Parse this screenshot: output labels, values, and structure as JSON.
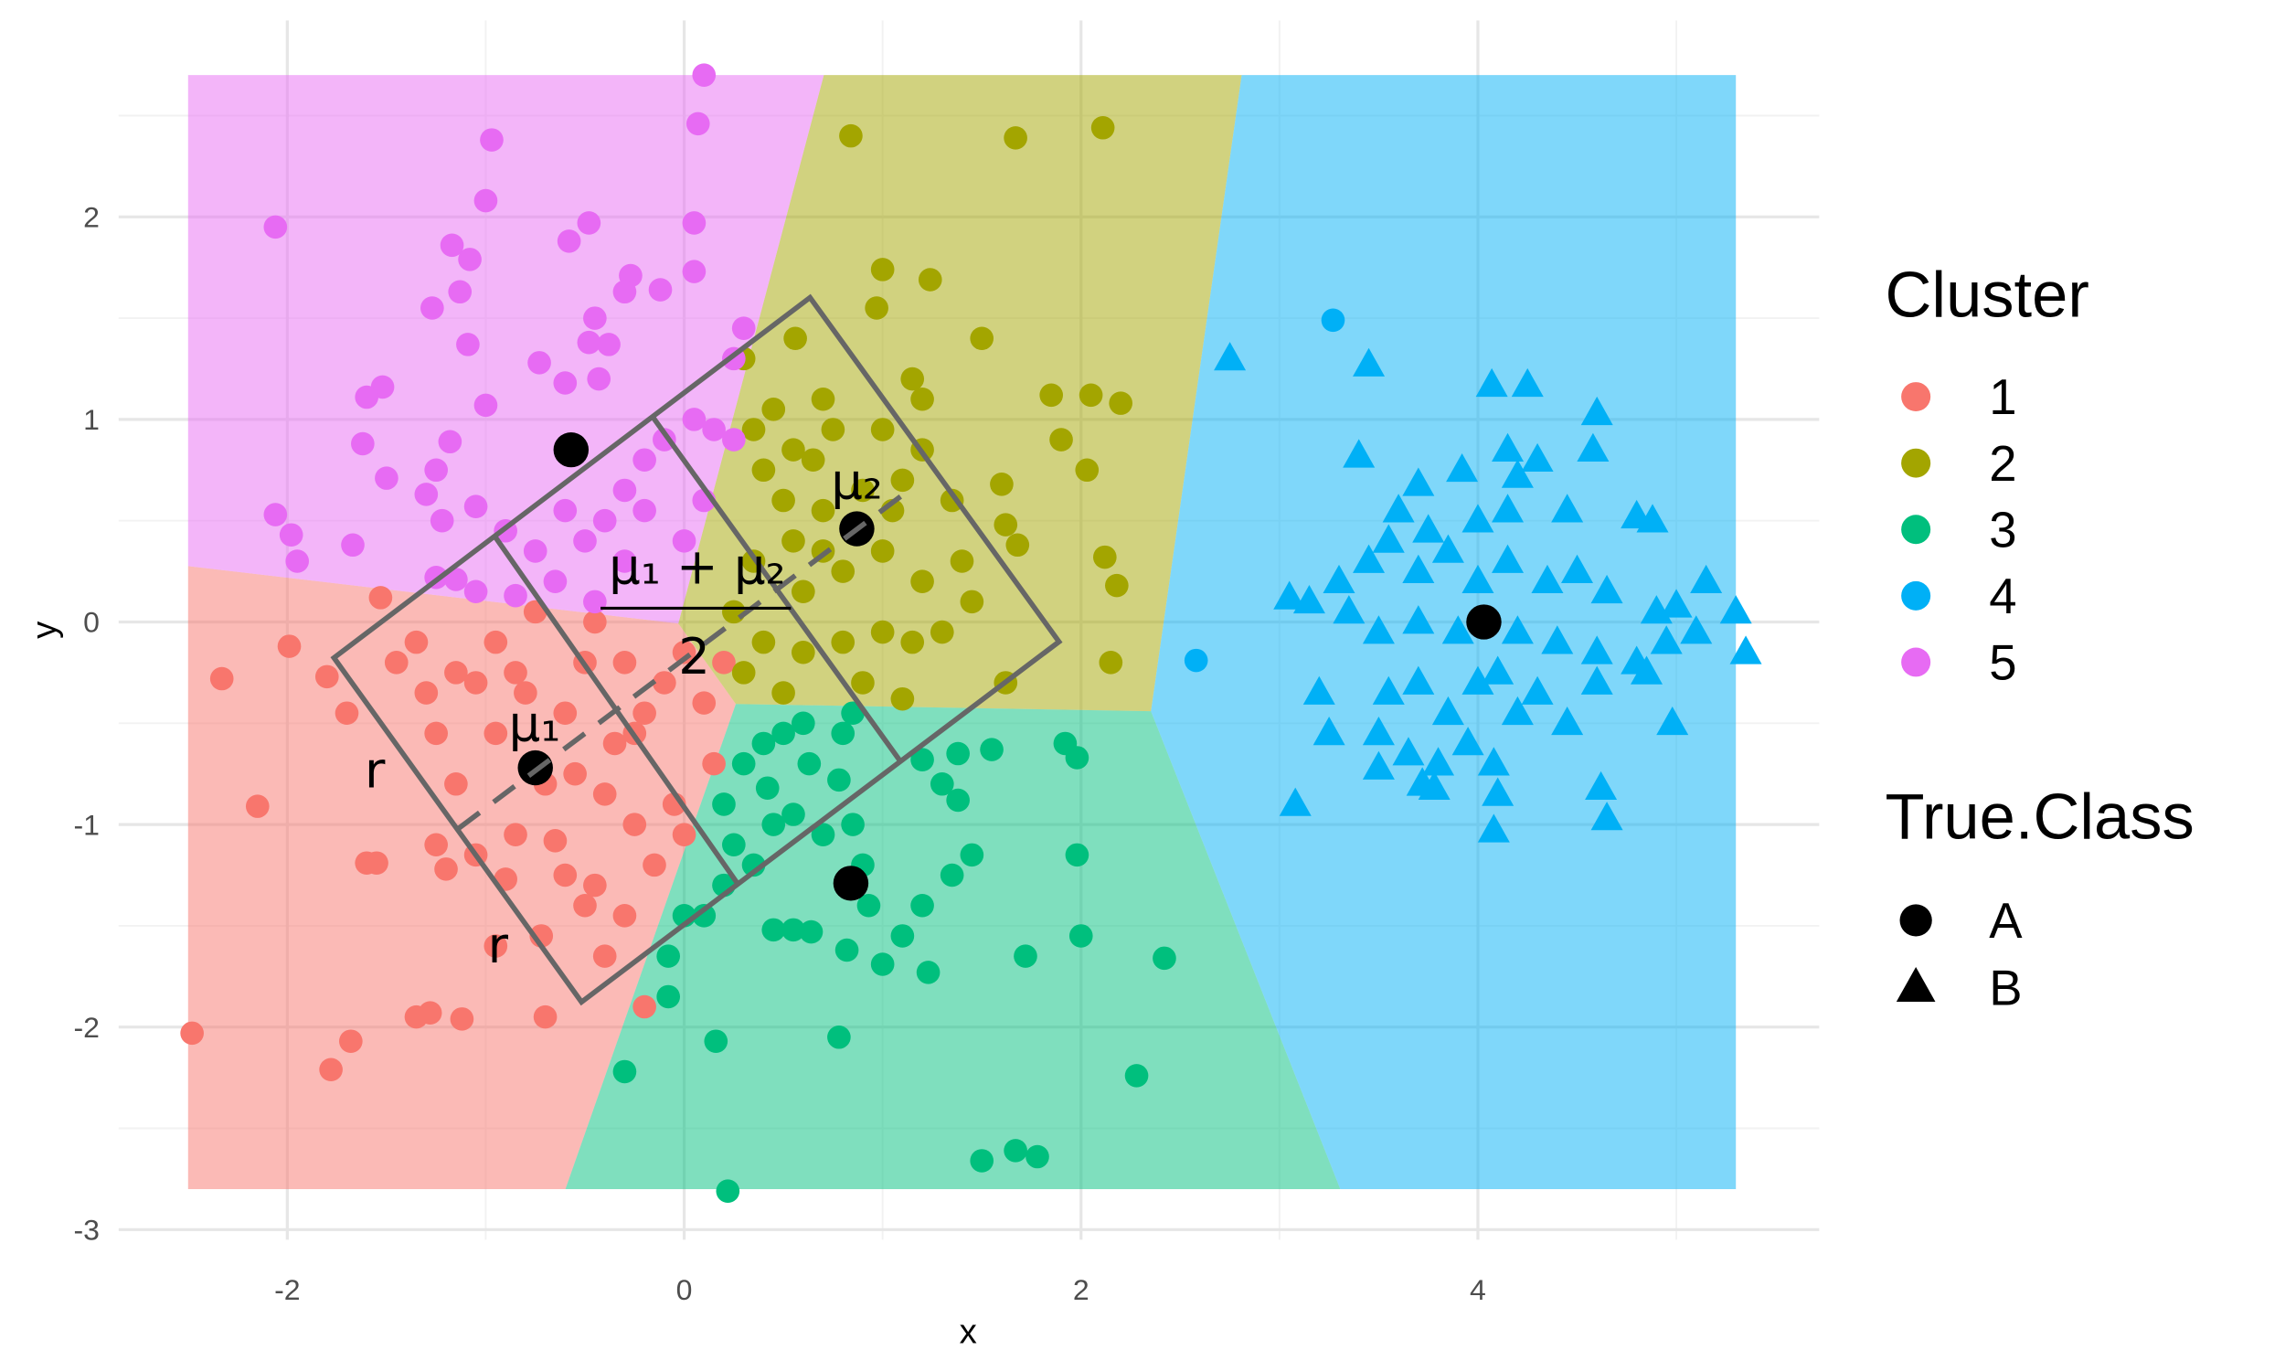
{
  "chart_data": {
    "type": "scatter",
    "x_label": "x",
    "y_label": "y",
    "xlim": [
      -2.85,
      5.72
    ],
    "ylim": [
      -3.05,
      2.97
    ],
    "xticks": [
      -2,
      0,
      2,
      4
    ],
    "yticks": [
      -3,
      -2,
      -1,
      0,
      1,
      2
    ],
    "x_minor_ticks": [
      -1,
      1,
      3,
      5
    ],
    "y_minor_ticks": [
      -2.5,
      -1.5,
      -0.5,
      0.5,
      1.5,
      2.5
    ],
    "grid": true,
    "region_xlim": [
      -2.5,
      5.3
    ],
    "region_ylim": [
      -2.8,
      2.7
    ],
    "cluster_legend_title": "Cluster",
    "clusters": [
      {
        "name": "1",
        "color": "#F8766D"
      },
      {
        "name": "2",
        "color": "#A3A500"
      },
      {
        "name": "3",
        "color": "#00BF7D"
      },
      {
        "name": "4",
        "color": "#00B0F6"
      },
      {
        "name": "5",
        "color": "#E76BF3"
      }
    ],
    "class_legend_title": "True.Class",
    "classes": [
      {
        "name": "A",
        "shape": "circle"
      },
      {
        "name": "B",
        "shape": "triangle"
      }
    ],
    "centers": {
      "x": [
        -0.75,
        0.87,
        0.84,
        4.03,
        -0.57
      ],
      "y": [
        -0.72,
        0.46,
        -1.29,
        0.0,
        0.85
      ]
    },
    "annotations": [
      "μ₁",
      "μ₂",
      "μ₁ + μ₂",
      "2",
      "r",
      "r"
    ],
    "series": [
      {
        "cluster": 0,
        "true_class": 0,
        "x": [
          -2.48,
          -2.33,
          -2.15,
          -1.99,
          -1.78,
          -1.68,
          -1.8,
          -1.7,
          -1.53,
          -1.45,
          -1.35,
          -1.3,
          -1.25,
          -1.15,
          -1.05,
          -0.95,
          -0.85,
          -0.95,
          -1.15,
          -1.25,
          -1.2,
          -1.05,
          -1.35,
          -1.28,
          -1.12,
          -0.95,
          -0.72,
          -0.7,
          -0.85,
          -0.65,
          -0.6,
          -0.5,
          -0.45,
          -0.3,
          -0.25,
          -0.2,
          -0.4,
          -0.35,
          -0.2,
          -0.1,
          0.0,
          0.1,
          0.2,
          0.15,
          -0.05,
          0.0,
          -0.5,
          -0.45,
          -0.6,
          -0.7,
          -0.8,
          -0.55,
          -0.3,
          -1.55,
          -1.6,
          -0.9,
          -0.25,
          -0.4,
          -0.15,
          -0.75
        ],
        "y": [
          -2.03,
          -0.28,
          -0.91,
          -0.12,
          -2.21,
          -2.07,
          -0.27,
          -0.45,
          0.12,
          -0.2,
          -0.1,
          -0.35,
          -0.55,
          -0.25,
          -0.3,
          -0.1,
          -0.25,
          -0.55,
          -0.8,
          -1.1,
          -1.22,
          -1.15,
          -1.95,
          -1.93,
          -1.96,
          -1.6,
          -1.55,
          -1.95,
          -1.05,
          -1.08,
          -1.25,
          -1.4,
          -1.3,
          -1.45,
          -1.0,
          -1.9,
          -0.85,
          -0.6,
          -0.45,
          -0.3,
          -0.15,
          -0.4,
          -0.2,
          -0.7,
          -0.9,
          -1.05,
          -0.2,
          0.0,
          -0.45,
          -0.8,
          -0.35,
          -0.75,
          -0.2,
          -1.19,
          -1.19,
          -1.27,
          -0.55,
          -1.65,
          -1.2,
          0.05
        ]
      },
      {
        "cluster": 1,
        "true_class": 0,
        "x": [
          0.84,
          1.67,
          2.11,
          1.0,
          0.97,
          1.24,
          1.5,
          0.56,
          0.3,
          0.7,
          1.15,
          1.2,
          1.85,
          2.05,
          2.2,
          1.9,
          2.03,
          1.6,
          1.2,
          1.0,
          0.75,
          0.55,
          0.4,
          0.5,
          0.7,
          1.05,
          1.35,
          1.62,
          1.68,
          2.12,
          2.18,
          1.4,
          1.2,
          1.0,
          0.8,
          0.6,
          0.35,
          0.25,
          0.4,
          0.6,
          0.8,
          1.0,
          1.15,
          1.3,
          1.62,
          2.15,
          0.5,
          0.3,
          1.1,
          0.9,
          0.55,
          0.7,
          0.45,
          0.65,
          1.45,
          1.1,
          0.35,
          0.9
        ],
        "y": [
          2.4,
          2.39,
          2.44,
          1.74,
          1.55,
          1.69,
          1.4,
          1.4,
          1.3,
          1.1,
          1.2,
          1.1,
          1.12,
          1.12,
          1.08,
          0.9,
          0.75,
          0.68,
          0.85,
          0.95,
          0.95,
          0.85,
          0.75,
          0.6,
          0.55,
          0.55,
          0.6,
          0.48,
          0.38,
          0.32,
          0.18,
          0.3,
          0.2,
          0.35,
          0.25,
          0.15,
          0.3,
          0.05,
          -0.1,
          -0.15,
          -0.1,
          -0.05,
          -0.1,
          -0.05,
          -0.3,
          -0.2,
          -0.35,
          -0.25,
          -0.38,
          -0.3,
          0.4,
          0.35,
          1.05,
          0.8,
          0.1,
          0.7,
          0.95,
          0.65
        ]
      },
      {
        "cluster": 2,
        "true_class": 0,
        "x": [
          0.22,
          1.5,
          1.67,
          1.78,
          2.28,
          0.16,
          0.78,
          -0.3,
          -0.08,
          -0.08,
          1.72,
          2.42,
          1.0,
          1.23,
          0.64,
          0.45,
          0.55,
          2.0,
          0.82,
          0.0,
          0.1,
          0.93,
          1.2,
          1.35,
          1.45,
          1.98,
          0.2,
          0.35,
          0.45,
          0.55,
          0.7,
          0.85,
          0.2,
          0.25,
          0.3,
          0.4,
          0.5,
          0.6,
          0.8,
          0.85,
          1.2,
          1.38,
          1.38,
          1.55,
          1.92,
          1.98,
          0.78,
          1.3,
          0.9,
          1.1,
          0.42,
          0.63
        ],
        "y": [
          -2.81,
          -2.66,
          -2.61,
          -2.64,
          -2.24,
          -2.07,
          -2.05,
          -2.22,
          -1.85,
          -1.65,
          -1.65,
          -1.66,
          -1.69,
          -1.73,
          -1.53,
          -1.52,
          -1.52,
          -1.55,
          -1.62,
          -1.45,
          -1.45,
          -1.4,
          -1.4,
          -1.25,
          -1.15,
          -1.15,
          -1.3,
          -1.2,
          -1.0,
          -0.95,
          -1.05,
          -1.0,
          -0.9,
          -1.1,
          -0.7,
          -0.6,
          -0.55,
          -0.5,
          -0.55,
          -0.45,
          -0.68,
          -0.65,
          -0.88,
          -0.63,
          -0.6,
          -0.67,
          -0.78,
          -0.8,
          -1.2,
          -1.55,
          -0.82,
          -0.7
        ]
      },
      {
        "cluster": 3,
        "true_class": 1,
        "x": [
          2.75,
          3.45,
          4.07,
          4.25,
          3.4,
          3.7,
          3.92,
          4.2,
          4.15,
          4.3,
          4.6,
          4.58,
          3.6,
          3.75,
          4.0,
          4.15,
          4.45,
          4.8,
          4.88,
          3.05,
          3.15,
          3.3,
          3.45,
          3.55,
          3.7,
          3.85,
          4.0,
          4.15,
          4.35,
          4.5,
          4.65,
          4.9,
          5.0,
          5.15,
          5.3,
          5.35,
          5.1,
          4.95,
          4.8,
          4.6,
          4.4,
          4.2,
          3.9,
          3.7,
          3.5,
          3.35,
          3.2,
          3.55,
          3.7,
          3.85,
          4.0,
          4.1,
          4.3,
          4.45,
          4.6,
          4.85,
          4.98,
          3.25,
          3.5,
          3.65,
          3.8,
          3.95,
          4.08,
          4.2,
          3.5,
          3.72,
          3.78,
          4.1,
          4.62,
          4.65,
          3.08,
          4.08
        ],
        "y": [
          1.3,
          1.27,
          1.17,
          1.17,
          0.82,
          0.68,
          0.75,
          0.72,
          0.85,
          0.8,
          1.03,
          0.85,
          0.55,
          0.45,
          0.5,
          0.55,
          0.55,
          0.52,
          0.5,
          0.12,
          0.1,
          0.2,
          0.3,
          0.4,
          0.25,
          0.35,
          0.2,
          0.3,
          0.2,
          0.25,
          0.15,
          0.05,
          0.08,
          0.2,
          0.05,
          -0.15,
          -0.05,
          -0.1,
          -0.2,
          -0.15,
          -0.1,
          -0.05,
          -0.05,
          0.0,
          -0.05,
          0.05,
          -0.35,
          -0.35,
          -0.3,
          -0.45,
          -0.3,
          -0.25,
          -0.35,
          -0.5,
          -0.3,
          -0.25,
          -0.5,
          -0.55,
          -0.55,
          -0.65,
          -0.7,
          -0.6,
          -0.7,
          -0.45,
          -0.72,
          -0.8,
          -0.82,
          -0.85,
          -0.82,
          -0.97,
          -0.9,
          -1.03
        ]
      },
      {
        "cluster": 3,
        "true_class": 0,
        "x": [
          3.27,
          2.58
        ],
        "y": [
          1.49,
          -0.19
        ]
      },
      {
        "cluster": 4,
        "true_class": 0,
        "x": [
          -2.06,
          -0.97,
          -1.0,
          0.1,
          0.07,
          0.05,
          -0.48,
          -0.58,
          -1.17,
          -1.08,
          -1.27,
          -1.13,
          -1.09,
          -0.27,
          -0.3,
          0.05,
          -0.12,
          -0.45,
          -0.48,
          -0.38,
          -0.43,
          -0.73,
          -0.6,
          -1.52,
          -1.6,
          -1.0,
          -1.62,
          -1.5,
          -1.18,
          -1.25,
          -1.3,
          -1.05,
          -1.22,
          -2.06,
          -1.98,
          -1.95,
          -1.67,
          -1.25,
          -1.15,
          -1.05,
          -0.85,
          -0.65,
          -0.5,
          -0.4,
          -0.3,
          -0.2,
          -0.1,
          0.05,
          0.15,
          0.25,
          0.25,
          0.3,
          -0.75,
          -0.6,
          -0.2,
          0.0,
          -0.9,
          -0.3,
          0.1,
          -0.45
        ],
        "y": [
          1.95,
          2.38,
          2.08,
          2.7,
          2.46,
          1.97,
          1.97,
          1.88,
          1.86,
          1.79,
          1.55,
          1.63,
          1.37,
          1.71,
          1.63,
          1.73,
          1.64,
          1.5,
          1.38,
          1.37,
          1.2,
          1.28,
          1.18,
          1.16,
          1.11,
          1.07,
          0.88,
          0.71,
          0.89,
          0.75,
          0.63,
          0.57,
          0.5,
          0.53,
          0.43,
          0.3,
          0.38,
          0.22,
          0.21,
          0.15,
          0.13,
          0.2,
          0.4,
          0.5,
          0.65,
          0.8,
          0.9,
          1.0,
          0.95,
          0.9,
          1.3,
          1.45,
          0.35,
          0.55,
          0.55,
          0.4,
          0.45,
          0.3,
          0.6,
          0.1
        ]
      }
    ]
  }
}
